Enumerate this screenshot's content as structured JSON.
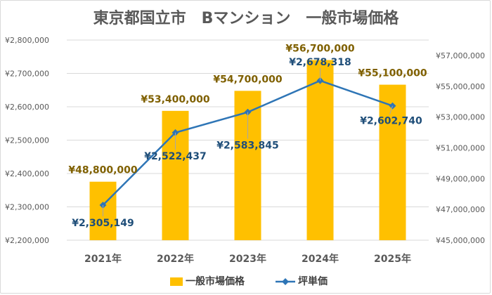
{
  "chart_data": {
    "type": "bar",
    "title": "東京都国立市　Bマンション　一般市場価格",
    "categories": [
      "2021年",
      "2022年",
      "2023年",
      "2024年",
      "2025年"
    ],
    "series": [
      {
        "name": "一般市場価格",
        "type": "bar",
        "axis": "right",
        "values": [
          48800000,
          53400000,
          54700000,
          56700000,
          55100000
        ],
        "labels": [
          "¥48,800,000",
          "¥53,400,000",
          "¥54,700,000",
          "¥56,700,000",
          "¥55,100,000"
        ],
        "color": "#ffc000"
      },
      {
        "name": "坪単価",
        "type": "line",
        "axis": "left",
        "values": [
          2305149,
          2522437,
          2583845,
          2678318,
          2602740
        ],
        "labels": [
          "¥2,305,149",
          "¥2,522,437",
          "¥2,583,845",
          "¥2,678,318",
          "¥2,602,740"
        ],
        "color": "#2e75b6"
      }
    ],
    "y_left": {
      "range": [
        2200000,
        2800000
      ],
      "ticks": [
        2200000,
        2300000,
        2400000,
        2500000,
        2600000,
        2700000,
        2800000
      ],
      "tick_labels": [
        "¥2,200,000",
        "¥2,300,000",
        "¥2,400,000",
        "¥2,500,000",
        "¥2,600,000",
        "¥2,700,000",
        "¥2,800,000"
      ]
    },
    "y_right": {
      "range": [
        45000000,
        58000000
      ],
      "ticks": [
        45000000,
        47000000,
        49000000,
        51000000,
        53000000,
        55000000,
        57000000
      ],
      "tick_labels": [
        "¥45,000,000",
        "¥47,000,000",
        "¥49,000,000",
        "¥51,000,000",
        "¥53,000,000",
        "¥55,000,000",
        "¥57,000,000"
      ]
    },
    "grid": true,
    "legend": "bottom"
  }
}
